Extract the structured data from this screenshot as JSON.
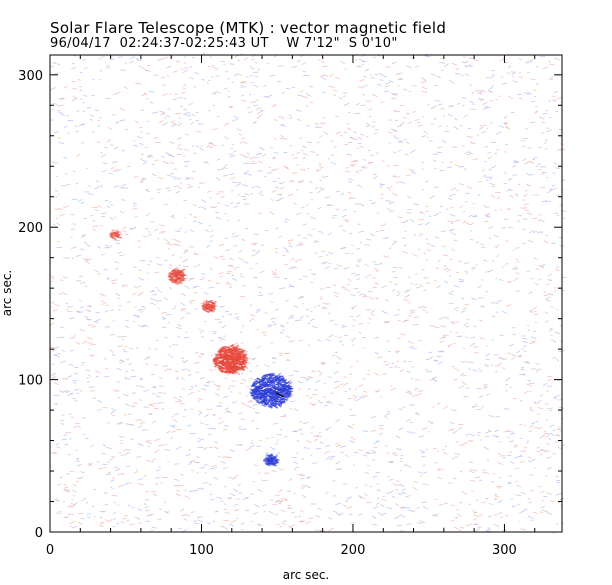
{
  "chart_data": {
    "type": "heatmap",
    "title": "Solar Flare Telescope (MTK) : vector magnetic field",
    "subtitle": "96/04/17  02:24:37-02:25:43 UT    W 7'12\"  S 0'10\"",
    "xlabel": "arc sec.",
    "ylabel": "arc sec.",
    "xlim": [
      0,
      338
    ],
    "ylim": [
      0,
      313
    ],
    "xticks": [
      0,
      100,
      200,
      300
    ],
    "yticks": [
      0,
      100,
      200,
      300
    ],
    "grid": false,
    "colors": {
      "positive": "#e8483c",
      "negative": "#2f3fd6",
      "vector": "#000000"
    },
    "regions": [
      {
        "polarity": "positive",
        "x": 118,
        "y": 113,
        "extent": 20,
        "intensity": 1.0
      },
      {
        "polarity": "negative",
        "x": 145,
        "y": 93,
        "extent": 24,
        "intensity": 1.0
      },
      {
        "polarity": "positive",
        "x": 83,
        "y": 168,
        "extent": 10,
        "intensity": 0.55
      },
      {
        "polarity": "positive",
        "x": 104,
        "y": 148,
        "extent": 8,
        "intensity": 0.45
      },
      {
        "polarity": "negative",
        "x": 145,
        "y": 47,
        "extent": 8,
        "intensity": 0.55
      },
      {
        "polarity": "positive",
        "x": 42,
        "y": 195,
        "extent": 6,
        "intensity": 0.3
      }
    ]
  }
}
